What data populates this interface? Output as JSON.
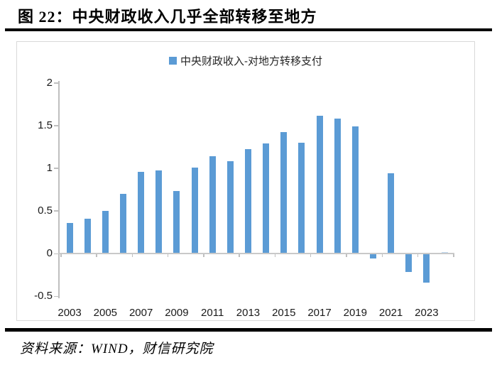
{
  "page": {
    "title": "图 22：中央财政收入几乎全部转移至地方",
    "source": "资料来源：WIND，财信研究院"
  },
  "chart_data": {
    "type": "bar",
    "title": "",
    "legend": [
      "中央财政收入-对地方转移支付"
    ],
    "legend_position": "top-center",
    "categories": [
      "2003",
      "2004",
      "2005",
      "2006",
      "2007",
      "2008",
      "2009",
      "2010",
      "2011",
      "2012",
      "2013",
      "2014",
      "2015",
      "2016",
      "2017",
      "2018",
      "2019",
      "2020",
      "2021",
      "2022",
      "2023",
      "2024"
    ],
    "values": [
      0.36,
      0.41,
      0.5,
      0.7,
      0.96,
      0.97,
      0.73,
      1.01,
      1.14,
      1.08,
      1.22,
      1.29,
      1.42,
      1.3,
      1.61,
      1.58,
      1.49,
      -0.05,
      0.94,
      -0.21,
      -0.33,
      0.02
    ],
    "x_tick_labels": [
      "2003",
      "2005",
      "2007",
      "2009",
      "2011",
      "2013",
      "2015",
      "2017",
      "2019",
      "2021",
      "2023"
    ],
    "y_ticks": [
      2,
      1.5,
      1,
      0.5,
      0,
      -0.5
    ],
    "ylim": [
      -0.5,
      2
    ],
    "grid": false,
    "xlabel": "",
    "ylabel": "",
    "colors": {
      "bar": "#5B9BD5",
      "last_bar": "#BDD7EE",
      "axis": "#C9C9C9",
      "tick": "#BFBFBF",
      "text": "#1a1a1a",
      "frame": "#D9D9D9"
    }
  }
}
